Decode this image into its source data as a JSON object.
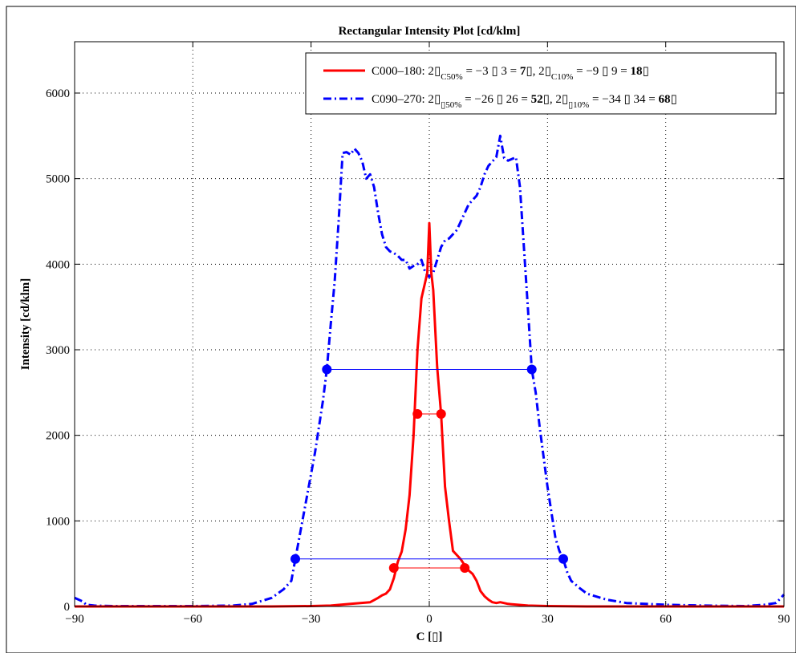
{
  "chart_data": {
    "type": "line",
    "title": "Rectangular Intensity Plot [cd/klm]",
    "xlabel": "C [▯]",
    "ylabel": "Intensity [cd/klm]",
    "xlim": [
      -90,
      90
    ],
    "ylim": [
      0,
      6600
    ],
    "xticks": [
      -90,
      -60,
      -30,
      0,
      30,
      60,
      90
    ],
    "xtick_labels": [
      "−90",
      "−60",
      "−30",
      "0",
      "30",
      "60",
      "90"
    ],
    "yticks": [
      0,
      1000,
      2000,
      3000,
      4000,
      5000,
      6000
    ],
    "ytick_labels": [
      "0",
      "1000",
      "2000",
      "3000",
      "4000",
      "5000",
      "6000"
    ],
    "grid": true,
    "legend_position": "top-right",
    "series": [
      {
        "name": "C000–180",
        "color": "#ff0000",
        "style": "solid",
        "x": [
          -90,
          -80,
          -60,
          -40,
          -30,
          -25,
          -20,
          -15,
          -13,
          -12,
          -11,
          -10,
          -9,
          -8,
          -7,
          -6,
          -5,
          -4,
          -3,
          -2,
          -1,
          -0.5,
          0,
          0.5,
          1,
          2,
          3,
          4,
          5,
          6,
          7,
          8,
          9,
          10,
          11,
          12,
          13,
          14,
          15,
          16,
          17,
          18,
          20,
          25,
          30,
          40,
          60,
          90
        ],
        "y": [
          0,
          0,
          0,
          0,
          5,
          10,
          30,
          50,
          100,
          130,
          150,
          200,
          330,
          520,
          640,
          900,
          1300,
          2000,
          3000,
          3600,
          3800,
          3900,
          4480,
          3900,
          3700,
          2800,
          2250,
          1400,
          1000,
          650,
          600,
          550,
          480,
          420,
          380,
          300,
          180,
          120,
          80,
          50,
          40,
          50,
          30,
          10,
          5,
          0,
          0,
          0
        ],
        "half_width_labels": {
          "c50": "C50%",
          "c10": "C10%",
          "eq1": " = −3 ▯   3 = ",
          "fw1": "7",
          "mid": "▯, 2▯",
          "eq2": " = −9 ▯   9 = ",
          "fw2": "18",
          "end": "▯"
        },
        "markers": [
          {
            "level": 2250,
            "x1": -3,
            "x2": 3
          },
          {
            "level": 450,
            "x1": -9,
            "x2": 9
          }
        ]
      },
      {
        "name": "C090–270",
        "color": "#0000ff",
        "style": "dashdot",
        "x": [
          -90,
          -88,
          -87,
          -85,
          -80,
          -70,
          -60,
          -50,
          -45,
          -40,
          -37,
          -35,
          -34,
          -33,
          -31,
          -29,
          -27,
          -26,
          -25,
          -24,
          -23,
          -22,
          -21,
          -20,
          -19,
          -18,
          -17,
          -16,
          -15,
          -14,
          -13,
          -12,
          -11,
          -10,
          -9,
          -8,
          -7,
          -6,
          -5,
          -4,
          -3,
          -2,
          -1,
          0,
          1,
          2,
          3,
          4,
          5,
          6,
          7,
          8,
          9,
          10,
          11,
          12,
          13,
          14,
          15,
          16,
          17,
          18,
          19,
          20,
          21,
          22,
          23,
          24,
          25,
          26,
          27,
          28,
          29,
          30,
          31,
          32,
          33,
          34,
          35,
          36,
          38,
          40,
          45,
          50,
          60,
          70,
          80,
          85,
          88,
          90
        ],
        "y": [
          100,
          60,
          20,
          10,
          5,
          5,
          5,
          10,
          30,
          100,
          200,
          300,
          550,
          800,
          1300,
          1800,
          2400,
          2770,
          3300,
          3800,
          4500,
          5300,
          5310,
          5280,
          5350,
          5300,
          5200,
          5000,
          5050,
          4900,
          4600,
          4350,
          4200,
          4150,
          4130,
          4100,
          4050,
          4050,
          3950,
          3980,
          4000,
          4050,
          3900,
          3850,
          3900,
          4050,
          4200,
          4280,
          4300,
          4350,
          4400,
          4500,
          4600,
          4700,
          4750,
          4800,
          4900,
          5050,
          5150,
          5200,
          5250,
          5500,
          5240,
          5210,
          5230,
          5250,
          4900,
          4200,
          3500,
          2770,
          2500,
          2100,
          1750,
          1400,
          1100,
          800,
          650,
          550,
          400,
          300,
          220,
          150,
          80,
          40,
          20,
          10,
          5,
          20,
          40,
          140
        ],
        "half_width_labels": {
          "c50": "▯50%",
          "c10": "▯10%",
          "eq1": " = −26 ▯   26 = ",
          "fw1": "52",
          "mid": "▯, 2▯",
          "eq2": " = −34 ▯   34 = ",
          "fw2": "68",
          "end": "▯"
        },
        "markers": [
          {
            "level": 2770,
            "x1": -26,
            "x2": 26
          },
          {
            "level": 555,
            "x1": -34,
            "x2": 34
          }
        ]
      }
    ]
  }
}
